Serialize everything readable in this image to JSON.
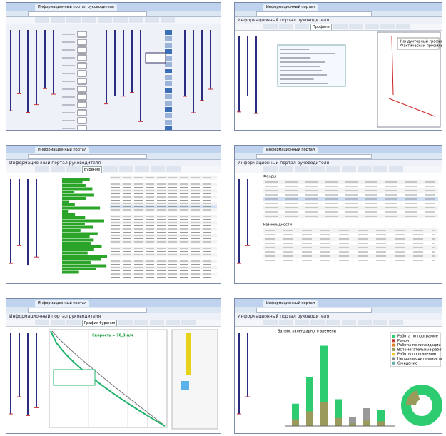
{
  "panels": [
    {
      "tab": "Информационный портал руководителя"
    },
    {
      "tab": "Информационный портал",
      "header": "Информационный портал руководителя",
      "active_tab": "Профиль",
      "legend": [
        "Кондукторный график",
        "Фактический профиль"
      ]
    },
    {
      "tab": "Информационный портал",
      "header": "Информационный портал руководителя",
      "active_tab": "Бурение"
    },
    {
      "tab": "Информационный портал",
      "header": "Информационный портал руководителя",
      "sections": [
        "Фонды",
        "Разновидности"
      ]
    },
    {
      "tab": "Информационный портал",
      "header": "Информационный портал руководителя",
      "active_tab": "График бурения",
      "annotation": "Скорость = 70,3 м/ч"
    },
    {
      "tab": "Информационный портал",
      "header": "Информационный портал руководителя",
      "chart_title": "Баланс календарного времени",
      "legend": [
        "Работа по программе",
        "Ремонт",
        "Работы по ликвидации",
        "Вспомогательные работы",
        "Работы по освоению",
        "Непроизводительное время",
        "Ожидание"
      ]
    }
  ]
}
